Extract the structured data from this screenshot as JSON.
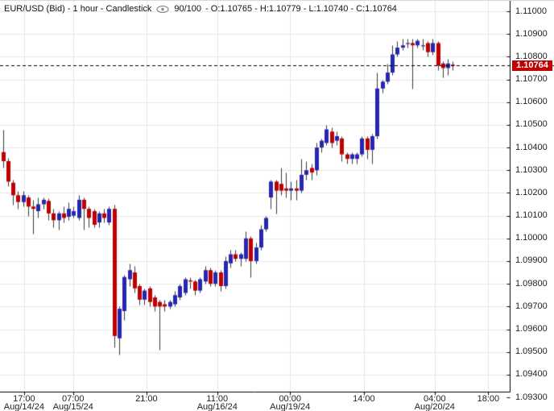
{
  "header": {
    "left": "EUR/USD (Bid) - 1 hour - Candlestick",
    "bars": "90/100",
    "ohlc": "- O:1.10765 - H:1.10779 - L:1.10740 - C:1.10764"
  },
  "price_tag": "1.10764",
  "colors": {
    "up": "#2626b2",
    "down": "#c00000",
    "wick": "#3a3a3a",
    "grid": "#e6e6e6",
    "axis": "#000000",
    "dashed_line": "#000000",
    "price_label_bg": "#c00000",
    "price_label_fg": "#ffffff",
    "background": "#ffffff",
    "text": "#222222"
  },
  "chart_data": {
    "type": "candlestick",
    "symbol": "EUR/USD (Bid)",
    "timeframe": "1 hour",
    "bars_shown": 90,
    "bars_capacity": 100,
    "ohlc_display": {
      "open": 1.10765,
      "high": 1.10779,
      "low": 1.1074,
      "close": 1.10764
    },
    "current_price": 1.10764,
    "y_axis_labels": [
      "1.11000",
      "1.10900",
      "1.10800",
      "1.10700",
      "1.10600",
      "1.10500",
      "1.10400",
      "1.10300",
      "1.10200",
      "1.10100",
      "1.10000",
      "1.09900",
      "1.09800",
      "1.09700",
      "1.09600",
      "1.09500",
      "1.09400",
      "1.09300"
    ],
    "y_axis_top": 1.11,
    "y_axis_step": 0.001,
    "x_axis_labels": [
      {
        "time": "17:00",
        "date": "Aug/14/24",
        "slot": 4.2
      },
      {
        "time": "07:00",
        "date": "Aug/15/24",
        "slot": 13.9
      },
      {
        "time": "21:00",
        "date": "",
        "slot": 28.4
      },
      {
        "time": "11:00",
        "date": "Aug/16/24",
        "slot": 42.4
      },
      {
        "time": "00:00",
        "date": "Aug/19/24",
        "slot": 56.8
      },
      {
        "time": "14:00",
        "date": "",
        "slot": 71.4
      },
      {
        "time": "04:00",
        "date": "Aug/20/24",
        "slot": 85.4
      },
      {
        "time": "18:00",
        "date": "",
        "slot": 96.0
      }
    ],
    "candles": [
      [
        1.1038,
        1.1048,
        1.1031,
        1.1034
      ],
      [
        1.1034,
        1.10355,
        1.1023,
        1.1025
      ],
      [
        1.10245,
        1.1026,
        1.1015,
        1.1019
      ],
      [
        1.1019,
        1.1021,
        1.1013,
        1.1016
      ],
      [
        1.1016,
        1.1021,
        1.1014,
        1.1019
      ],
      [
        1.1018,
        1.1019,
        1.101,
        1.1014
      ],
      [
        1.1014,
        1.1017,
        1.1002,
        1.1013
      ],
      [
        1.1012,
        1.1018,
        1.1009,
        1.1015
      ],
      [
        1.1015,
        1.1018,
        1.1013,
        1.1017
      ],
      [
        1.10165,
        1.10175,
        1.1008,
        1.1011
      ],
      [
        1.1011,
        1.1013,
        1.1005,
        1.1008
      ],
      [
        1.1008,
        1.1012,
        1.1004,
        1.1011
      ],
      [
        1.1011,
        1.1014,
        1.1007,
        1.1009
      ],
      [
        1.10095,
        1.1016,
        1.1008,
        1.1013
      ],
      [
        1.101,
        1.1014,
        1.1009,
        1.1012
      ],
      [
        1.1009,
        1.1019,
        1.1008,
        1.1017
      ],
      [
        1.1017,
        1.1018,
        1.1004,
        1.1013
      ],
      [
        1.1013,
        1.1014,
        1.1005,
        1.1009
      ],
      [
        1.1012,
        1.1013,
        1.1005,
        1.1006
      ],
      [
        1.1007,
        1.1012,
        1.1005,
        1.1011
      ],
      [
        1.1011,
        1.1013,
        1.1007,
        1.1009
      ],
      [
        1.1007,
        1.1014,
        1.1006,
        1.1013
      ],
      [
        1.1013,
        1.1015,
        1.0952,
        1.0957
      ],
      [
        1.0956,
        1.097,
        1.0949,
        1.0969
      ],
      [
        1.0968,
        1.0984,
        1.0964,
        1.0983
      ],
      [
        1.0982,
        1.0989,
        1.0979,
        1.0986
      ],
      [
        1.0985,
        1.0988,
        1.0976,
        1.0978
      ],
      [
        1.0979,
        1.098,
        1.0971,
        1.0973
      ],
      [
        1.0973,
        1.0978,
        1.0971,
        1.0977
      ],
      [
        1.0978,
        1.0979,
        1.097,
        1.0972
      ],
      [
        1.0974,
        1.0975,
        1.0968,
        1.097
      ],
      [
        1.0972,
        1.0973,
        1.0951,
        1.097
      ],
      [
        1.0971,
        1.0973,
        1.0968,
        1.097
      ],
      [
        1.097,
        1.0973,
        1.0969,
        1.0972
      ],
      [
        1.0971,
        1.0977,
        1.097,
        1.0975
      ],
      [
        1.0974,
        1.098,
        1.0973,
        1.0979
      ],
      [
        1.0976,
        1.0983,
        1.0975,
        1.0982
      ],
      [
        1.09815,
        1.0983,
        1.0978,
        1.0981
      ],
      [
        1.0981,
        1.0982,
        1.0975,
        1.0977
      ],
      [
        1.0977,
        1.0983,
        1.0976,
        1.0982
      ],
      [
        1.0981,
        1.0988,
        1.098,
        1.0986
      ],
      [
        1.0986,
        1.0987,
        1.0979,
        1.098
      ],
      [
        1.098,
        1.0986,
        1.0979,
        1.0985
      ],
      [
        1.0985,
        1.0986,
        1.0977,
        1.0979
      ],
      [
        1.0979,
        1.0992,
        1.0978,
        1.099
      ],
      [
        1.0989,
        1.0995,
        1.0987,
        1.0993
      ],
      [
        1.0993,
        1.0995,
        1.099,
        1.0991
      ],
      [
        1.0991,
        1.0994,
        1.0988,
        1.0993
      ],
      [
        1.0991,
        1.1003,
        1.099,
        1.1
      ],
      [
        1.1,
        1.1001,
        1.0983,
        1.099
      ],
      [
        1.099,
        1.0998,
        1.0989,
        1.0996
      ],
      [
        1.0996,
        1.1006,
        1.0995,
        1.1004
      ],
      [
        1.1004,
        1.101,
        1.1003,
        1.1009
      ],
      [
        1.1018,
        1.1026,
        1.1013,
        1.1025
      ],
      [
        1.1025,
        1.1026,
        1.1011,
        1.1021
      ],
      [
        1.1024,
        1.1031,
        1.1019,
        1.1021
      ],
      [
        1.1022,
        1.1029,
        1.1018,
        1.1021
      ],
      [
        1.1021,
        1.1025,
        1.1017,
        1.1022
      ],
      [
        1.1022,
        1.1026,
        1.1017,
        1.1021
      ],
      [
        1.1021,
        1.1035,
        1.102,
        1.1028
      ],
      [
        1.1028,
        1.1034,
        1.1026,
        1.103
      ],
      [
        1.1031,
        1.1033,
        1.1026,
        1.1029
      ],
      [
        1.103,
        1.1042,
        1.1028,
        1.104
      ],
      [
        1.104,
        1.1044,
        1.1038,
        1.1043
      ],
      [
        1.1042,
        1.105,
        1.1041,
        1.1048
      ],
      [
        1.1047,
        1.1049,
        1.104,
        1.1042
      ],
      [
        1.1043,
        1.1047,
        1.1041,
        1.1045
      ],
      [
        1.1044,
        1.1045,
        1.1034,
        1.1037
      ],
      [
        1.1037,
        1.1038,
        1.1033,
        1.1035
      ],
      [
        1.1035,
        1.1038,
        1.1033,
        1.1037
      ],
      [
        1.1035,
        1.1038,
        1.1033,
        1.1037
      ],
      [
        1.1037,
        1.1045,
        1.1036,
        1.1044
      ],
      [
        1.1044,
        1.1045,
        1.1035,
        1.1039
      ],
      [
        1.1039,
        1.1046,
        1.1033,
        1.1045
      ],
      [
        1.1045,
        1.1073,
        1.1044,
        1.1066
      ],
      [
        1.1066,
        1.107,
        1.1064,
        1.1069
      ],
      [
        1.1069,
        1.1077,
        1.1068,
        1.1073
      ],
      [
        1.1073,
        1.1085,
        1.1072,
        1.1081
      ],
      [
        1.1081,
        1.1087,
        1.108,
        1.1084
      ],
      [
        1.1084,
        1.1088,
        1.1083,
        1.1085
      ],
      [
        1.1086,
        1.1088,
        1.1084,
        1.1086
      ],
      [
        1.1086,
        1.1088,
        1.1066,
        1.1085
      ],
      [
        1.1085,
        1.1088,
        1.1084,
        1.1087
      ],
      [
        1.1085,
        1.1088,
        1.1083,
        1.1085
      ],
      [
        1.1086,
        1.1087,
        1.108,
        1.1082
      ],
      [
        1.1082,
        1.1088,
        1.1081,
        1.1086
      ],
      [
        1.1086,
        1.1087,
        1.1074,
        1.1076
      ],
      [
        1.1077,
        1.1078,
        1.1071,
        1.1075
      ],
      [
        1.1075,
        1.1079,
        1.1072,
        1.1077
      ],
      [
        1.10765,
        1.10779,
        1.1074,
        1.10764
      ]
    ]
  }
}
